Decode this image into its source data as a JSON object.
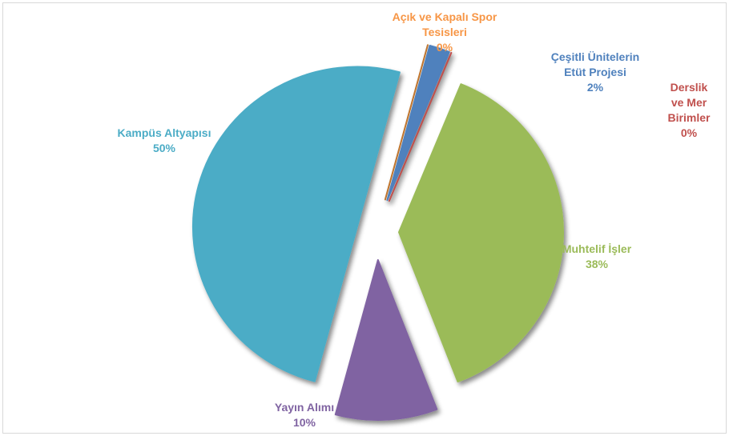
{
  "chart_data": {
    "type": "pie",
    "categories": [
      "Açık ve Kapalı Spor\nTesisleri",
      "Çeşitli Ünitelerin\nEtüt Projesi",
      "Derslik ve Mer\nBirimler",
      "Muhtelif İşler",
      "Yayın Alımı",
      "Kampüs Altyapısı"
    ],
    "values": [
      0,
      2,
      0,
      38,
      10,
      50
    ],
    "value_labels": [
      "0%",
      "2%",
      "0%",
      "38%",
      "10%",
      "50%"
    ],
    "colors": [
      "#c0752d",
      "#4f81bd",
      "#c0504d",
      "#9bbb59",
      "#8064a2",
      "#4bacc6"
    ],
    "label_colors": [
      "#f79646",
      "#4f81bd",
      "#c0504d",
      "#9bbb59",
      "#8064a2",
      "#4bacc6"
    ]
  }
}
